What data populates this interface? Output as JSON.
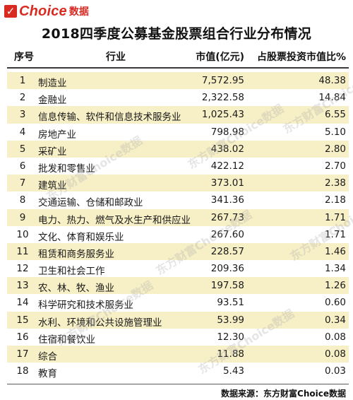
{
  "logo": {
    "brand": "Choice",
    "suffix": "数据",
    "mark": "✓"
  },
  "title": "2018四季度公募基金股票组合行业分布情况",
  "columns": {
    "no": "序号",
    "industry": "行业",
    "value": "市值(亿元)",
    "pct": "占股票投资市值比%"
  },
  "rows": [
    {
      "no": "1",
      "industry": "制造业",
      "value": "7,572.95",
      "pct": "48.38"
    },
    {
      "no": "2",
      "industry": "金融业",
      "value": "2,322.58",
      "pct": "14.84"
    },
    {
      "no": "3",
      "industry": "信息传输、软件和信息技术服务业",
      "value": "1,025.43",
      "pct": "6.55"
    },
    {
      "no": "4",
      "industry": "房地产业",
      "value": "798.98",
      "pct": "5.10"
    },
    {
      "no": "5",
      "industry": "采矿业",
      "value": "438.02",
      "pct": "2.80"
    },
    {
      "no": "6",
      "industry": "批发和零售业",
      "value": "422.12",
      "pct": "2.70"
    },
    {
      "no": "7",
      "industry": "建筑业",
      "value": "373.01",
      "pct": "2.38"
    },
    {
      "no": "8",
      "industry": "交通运输、仓储和邮政业",
      "value": "341.36",
      "pct": "2.18"
    },
    {
      "no": "9",
      "industry": "电力、热力、燃气及水生产和供应业",
      "value": "267.73",
      "pct": "1.71"
    },
    {
      "no": "10",
      "industry": "文化、体育和娱乐业",
      "value": "267.60",
      "pct": "1.71"
    },
    {
      "no": "11",
      "industry": "租赁和商务服务业",
      "value": "228.57",
      "pct": "1.46"
    },
    {
      "no": "12",
      "industry": "卫生和社会工作",
      "value": "209.36",
      "pct": "1.34"
    },
    {
      "no": "13",
      "industry": "农、林、牧、渔业",
      "value": "197.58",
      "pct": "1.26"
    },
    {
      "no": "14",
      "industry": "科学研究和技术服务业",
      "value": "93.51",
      "pct": "0.60"
    },
    {
      "no": "15",
      "industry": "水利、环境和公共设施管理业",
      "value": "53.99",
      "pct": "0.34"
    },
    {
      "no": "16",
      "industry": "住宿和餐饮业",
      "value": "12.30",
      "pct": "0.08"
    },
    {
      "no": "17",
      "industry": "综合",
      "value": "11.88",
      "pct": "0.08"
    },
    {
      "no": "18",
      "industry": "教育",
      "value": "5.43",
      "pct": "0.03"
    }
  ],
  "watermark": "东方财富Choice数据",
  "source": "数据来源：东方财富Choice数据",
  "colors": {
    "brand": "#d92a22",
    "stripe": "#f7efc6"
  }
}
